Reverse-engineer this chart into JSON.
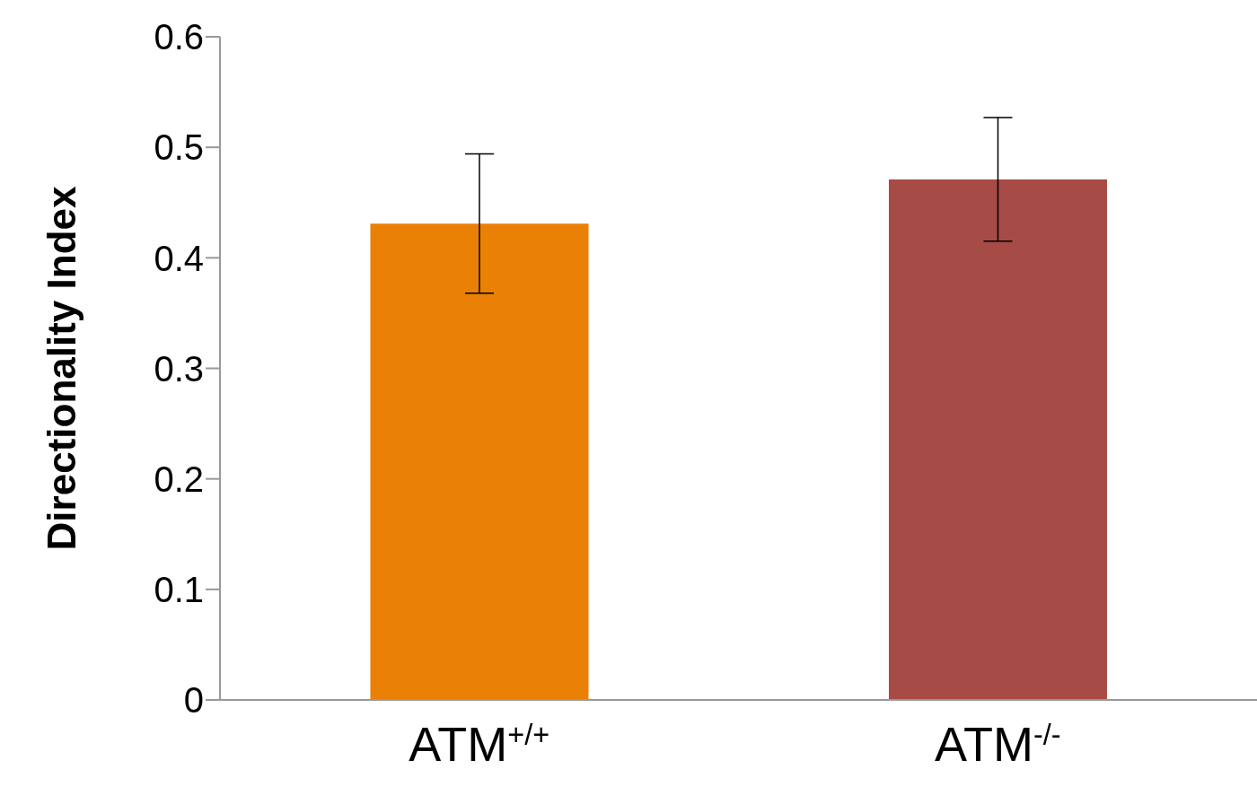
{
  "chart_data": {
    "type": "bar",
    "ylabel": "Directionality Index",
    "categories": [
      "ATM$^{+/+}$",
      "ATM$^{-/-}$"
    ],
    "values": [
      0.431,
      0.471
    ],
    "colors": [
      "#ea8006",
      "#a64b45"
    ],
    "errors": [
      0.063,
      0.056
    ],
    "ylim": [
      0,
      0.6
    ],
    "yticks": [
      0,
      0.1,
      0.2,
      0.3,
      0.4,
      0.5,
      0.6
    ],
    "grid": false,
    "legend": false
  }
}
